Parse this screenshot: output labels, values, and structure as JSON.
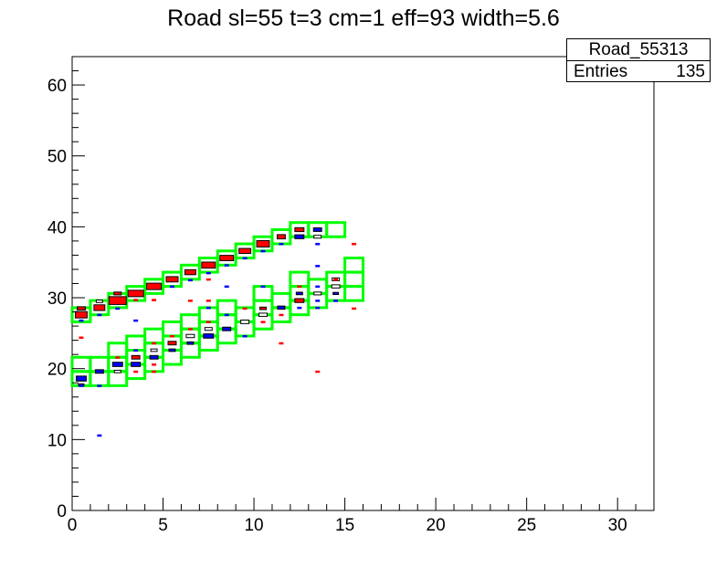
{
  "chart_data": {
    "type": "heatmap",
    "title": "Road sl=55 t=3 cm=1 eff=93 width=5.6",
    "xlabel": "",
    "ylabel": "",
    "xlim": [
      0,
      32
    ],
    "ylim": [
      0,
      64
    ],
    "x_ticks": [
      0,
      5,
      10,
      15,
      20,
      25,
      30
    ],
    "y_ticks": [
      0,
      10,
      20,
      30,
      40,
      50,
      60
    ],
    "grid": false,
    "stats": {
      "name": "Road_55313",
      "entries_label": "Entries",
      "entries": "135"
    },
    "colors": {
      "road": "#00ff00",
      "red": "#ff0000",
      "blue": "#0000ff",
      "frame": "#000000"
    },
    "road_upper": [
      [
        0,
        27.6
      ],
      [
        1,
        28.6
      ],
      [
        2,
        29.6
      ],
      [
        3,
        30.6
      ],
      [
        4,
        31.6
      ],
      [
        5,
        32.6
      ],
      [
        6,
        33.6
      ],
      [
        7,
        34.6
      ],
      [
        8,
        35.6
      ],
      [
        9,
        36.6
      ],
      [
        10,
        37.6
      ],
      [
        11,
        38.6
      ],
      [
        12,
        39.6
      ],
      [
        13,
        39.6
      ],
      [
        14,
        39.6
      ]
    ],
    "road_lower": [
      [
        0,
        18.6
      ],
      [
        0,
        20.6
      ],
      [
        1,
        18.6
      ],
      [
        1,
        20.6
      ],
      [
        2,
        18.6
      ],
      [
        2,
        20.6
      ],
      [
        2,
        22.6
      ],
      [
        3,
        19.6
      ],
      [
        3,
        21.6
      ],
      [
        3,
        23.6
      ],
      [
        4,
        20.6
      ],
      [
        4,
        22.6
      ],
      [
        4,
        24.6
      ],
      [
        5,
        21.6
      ],
      [
        5,
        23.6
      ],
      [
        5,
        25.6
      ],
      [
        6,
        22.6
      ],
      [
        6,
        24.6
      ],
      [
        6,
        26.6
      ],
      [
        7,
        23.6
      ],
      [
        7,
        25.6
      ],
      [
        7,
        27.6
      ],
      [
        8,
        24.6
      ],
      [
        8,
        26.6
      ],
      [
        8,
        28.6
      ],
      [
        9,
        25.6
      ],
      [
        9,
        27.6
      ],
      [
        10,
        26.6
      ],
      [
        10,
        28.6
      ],
      [
        10,
        30.6
      ],
      [
        11,
        27.6
      ],
      [
        11,
        29.6
      ],
      [
        12,
        28.6
      ],
      [
        12,
        30.6
      ],
      [
        12,
        32.6
      ],
      [
        13,
        29.6
      ],
      [
        13,
        31.6
      ],
      [
        14,
        30.6
      ],
      [
        14,
        32.6
      ],
      [
        15,
        30.6
      ],
      [
        15,
        32.6
      ],
      [
        15,
        34.6
      ]
    ],
    "filled_cells": [
      {
        "x": 0.5,
        "y": 27.6,
        "w": 0.65,
        "h": 0.9,
        "color": "red"
      },
      {
        "x": 0.5,
        "y": 28.5,
        "w": 0.45,
        "h": 0.45,
        "color": "red"
      },
      {
        "x": 1.5,
        "y": 28.6,
        "w": 0.6,
        "h": 0.8,
        "color": "red"
      },
      {
        "x": 1.5,
        "y": 29.5,
        "w": 0.35,
        "h": 0.35,
        "color": "none"
      },
      {
        "x": 2.5,
        "y": 29.6,
        "w": 0.95,
        "h": 1.1,
        "color": "red"
      },
      {
        "x": 2.5,
        "y": 30.6,
        "w": 0.4,
        "h": 0.4,
        "color": "red"
      },
      {
        "x": 3.5,
        "y": 30.6,
        "w": 0.85,
        "h": 0.9,
        "color": "red"
      },
      {
        "x": 4.5,
        "y": 31.6,
        "w": 0.8,
        "h": 0.9,
        "color": "red"
      },
      {
        "x": 5.5,
        "y": 32.6,
        "w": 0.65,
        "h": 0.75,
        "color": "red"
      },
      {
        "x": 6.5,
        "y": 33.6,
        "w": 0.6,
        "h": 0.7,
        "color": "red"
      },
      {
        "x": 7.5,
        "y": 34.6,
        "w": 0.75,
        "h": 0.85,
        "color": "red"
      },
      {
        "x": 8.5,
        "y": 35.6,
        "w": 0.75,
        "h": 0.75,
        "color": "red"
      },
      {
        "x": 9.5,
        "y": 36.6,
        "w": 0.65,
        "h": 0.7,
        "color": "red"
      },
      {
        "x": 10.5,
        "y": 37.6,
        "w": 0.7,
        "h": 0.9,
        "color": "red"
      },
      {
        "x": 11.5,
        "y": 38.6,
        "w": 0.45,
        "h": 0.6,
        "color": "red"
      },
      {
        "x": 12.5,
        "y": 39.6,
        "w": 0.5,
        "h": 0.55,
        "color": "red"
      },
      {
        "x": 12.5,
        "y": 38.6,
        "w": 0.5,
        "h": 0.55,
        "color": "blue"
      },
      {
        "x": 13.5,
        "y": 39.6,
        "w": 0.45,
        "h": 0.5,
        "color": "blue"
      },
      {
        "x": 13.5,
        "y": 38.6,
        "w": 0.4,
        "h": 0.4,
        "color": "none"
      },
      {
        "x": 0.5,
        "y": 18.6,
        "w": 0.55,
        "h": 0.7,
        "color": "blue"
      },
      {
        "x": 0.5,
        "y": 17.7,
        "w": 0.3,
        "h": 0.3,
        "color": "blue"
      },
      {
        "x": 1.5,
        "y": 19.6,
        "w": 0.45,
        "h": 0.5,
        "color": "blue"
      },
      {
        "x": 2.5,
        "y": 20.6,
        "w": 0.55,
        "h": 0.6,
        "color": "blue"
      },
      {
        "x": 2.5,
        "y": 19.6,
        "w": 0.35,
        "h": 0.35,
        "color": "none"
      },
      {
        "x": 3.5,
        "y": 20.6,
        "w": 0.5,
        "h": 0.6,
        "color": "blue"
      },
      {
        "x": 3.5,
        "y": 21.6,
        "w": 0.45,
        "h": 0.5,
        "color": "red"
      },
      {
        "x": 4.5,
        "y": 21.6,
        "w": 0.45,
        "h": 0.5,
        "color": "blue"
      },
      {
        "x": 4.5,
        "y": 22.6,
        "w": 0.35,
        "h": 0.35,
        "color": "none"
      },
      {
        "x": 5.5,
        "y": 23.6,
        "w": 0.45,
        "h": 0.5,
        "color": "red"
      },
      {
        "x": 5.5,
        "y": 22.6,
        "w": 0.35,
        "h": 0.35,
        "color": "blue"
      },
      {
        "x": 6.5,
        "y": 24.6,
        "w": 0.45,
        "h": 0.45,
        "color": "none"
      },
      {
        "x": 6.5,
        "y": 23.6,
        "w": 0.35,
        "h": 0.35,
        "color": "blue"
      },
      {
        "x": 7.5,
        "y": 24.6,
        "w": 0.55,
        "h": 0.6,
        "color": "blue"
      },
      {
        "x": 7.5,
        "y": 25.6,
        "w": 0.4,
        "h": 0.4,
        "color": "none"
      },
      {
        "x": 8.5,
        "y": 25.6,
        "w": 0.45,
        "h": 0.5,
        "color": "blue"
      },
      {
        "x": 9.5,
        "y": 26.6,
        "w": 0.45,
        "h": 0.5,
        "color": "none"
      },
      {
        "x": 10.5,
        "y": 27.6,
        "w": 0.45,
        "h": 0.45,
        "color": "none"
      },
      {
        "x": 10.5,
        "y": 28.5,
        "w": 0.35,
        "h": 0.35,
        "color": "red"
      },
      {
        "x": 11.5,
        "y": 28.6,
        "w": 0.4,
        "h": 0.45,
        "color": "blue"
      },
      {
        "x": 12.5,
        "y": 29.6,
        "w": 0.5,
        "h": 0.55,
        "color": "red"
      },
      {
        "x": 12.5,
        "y": 30.6,
        "w": 0.35,
        "h": 0.35,
        "color": "blue"
      },
      {
        "x": 13.5,
        "y": 30.6,
        "w": 0.4,
        "h": 0.4,
        "color": "none"
      },
      {
        "x": 14.5,
        "y": 31.6,
        "w": 0.45,
        "h": 0.45,
        "color": "none"
      },
      {
        "x": 14.5,
        "y": 32.6,
        "w": 0.4,
        "h": 0.4,
        "color": "none"
      },
      {
        "x": 14.5,
        "y": 30.6,
        "w": 0.3,
        "h": 0.3,
        "color": "blue"
      }
    ],
    "dashes": [
      {
        "x": 0.5,
        "y": 26.8,
        "color": "blue"
      },
      {
        "x": 0.5,
        "y": 24.4,
        "color": "red"
      },
      {
        "x": 1.5,
        "y": 27.6,
        "color": "blue"
      },
      {
        "x": 2.5,
        "y": 28.5,
        "color": "blue"
      },
      {
        "x": 3.5,
        "y": 29.7,
        "color": "red"
      },
      {
        "x": 3.5,
        "y": 26.8,
        "color": "blue"
      },
      {
        "x": 4.5,
        "y": 29.7,
        "color": "red"
      },
      {
        "x": 5.5,
        "y": 31.6,
        "color": "blue"
      },
      {
        "x": 6.5,
        "y": 32.5,
        "color": "blue"
      },
      {
        "x": 6.5,
        "y": 29.6,
        "color": "red"
      },
      {
        "x": 7.5,
        "y": 33.5,
        "color": "blue"
      },
      {
        "x": 7.5,
        "y": 32.6,
        "color": "red"
      },
      {
        "x": 7.5,
        "y": 29.6,
        "color": "red"
      },
      {
        "x": 8.5,
        "y": 34.6,
        "color": "blue"
      },
      {
        "x": 8.5,
        "y": 31.6,
        "color": "blue"
      },
      {
        "x": 9.5,
        "y": 35.6,
        "color": "blue"
      },
      {
        "x": 10.5,
        "y": 36.6,
        "color": "blue"
      },
      {
        "x": 10.5,
        "y": 31.6,
        "color": "blue"
      },
      {
        "x": 11.5,
        "y": 37.6,
        "color": "blue"
      },
      {
        "x": 13.5,
        "y": 37.6,
        "color": "blue"
      },
      {
        "x": 13.5,
        "y": 34.5,
        "color": "blue"
      },
      {
        "x": 15.5,
        "y": 37.6,
        "color": "red"
      },
      {
        "x": 1.5,
        "y": 10.6,
        "color": "blue"
      },
      {
        "x": 0.5,
        "y": 17.6,
        "color": "blue"
      },
      {
        "x": 1.5,
        "y": 17.6,
        "color": "blue"
      },
      {
        "x": 2.5,
        "y": 21.6,
        "color": "red"
      },
      {
        "x": 3.5,
        "y": 22.6,
        "color": "blue"
      },
      {
        "x": 3.5,
        "y": 19.6,
        "color": "red"
      },
      {
        "x": 4.5,
        "y": 20.6,
        "color": "red"
      },
      {
        "x": 4.5,
        "y": 19.6,
        "color": "red"
      },
      {
        "x": 4.5,
        "y": 23.6,
        "color": "red"
      },
      {
        "x": 5.5,
        "y": 24.6,
        "color": "red"
      },
      {
        "x": 6.5,
        "y": 25.6,
        "color": "red"
      },
      {
        "x": 7.5,
        "y": 26.6,
        "color": "red"
      },
      {
        "x": 7.5,
        "y": 28.6,
        "color": "blue"
      },
      {
        "x": 8.5,
        "y": 27.6,
        "color": "blue"
      },
      {
        "x": 9.5,
        "y": 24.6,
        "color": "blue"
      },
      {
        "x": 9.5,
        "y": 28.5,
        "color": "red"
      },
      {
        "x": 10.5,
        "y": 26.6,
        "color": "red"
      },
      {
        "x": 11.5,
        "y": 27.6,
        "color": "red"
      },
      {
        "x": 11.5,
        "y": 23.6,
        "color": "red"
      },
      {
        "x": 12.5,
        "y": 31.6,
        "color": "red"
      },
      {
        "x": 12.5,
        "y": 28.6,
        "color": "blue"
      },
      {
        "x": 13.5,
        "y": 29.6,
        "color": "blue"
      },
      {
        "x": 13.5,
        "y": 31.6,
        "color": "blue"
      },
      {
        "x": 13.5,
        "y": 28.6,
        "color": "blue"
      },
      {
        "x": 13.5,
        "y": 19.6,
        "color": "red"
      },
      {
        "x": 14.5,
        "y": 32.6,
        "color": "red"
      },
      {
        "x": 14.5,
        "y": 29.6,
        "color": "blue"
      },
      {
        "x": 15.5,
        "y": 28.5,
        "color": "red"
      }
    ]
  }
}
